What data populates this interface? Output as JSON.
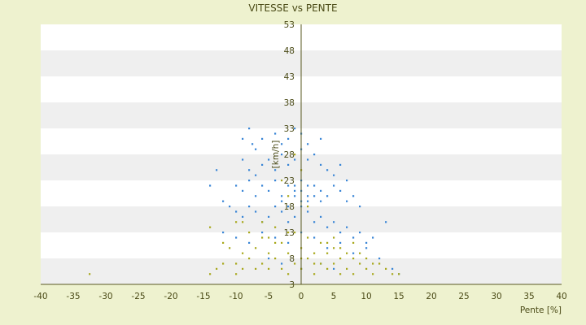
{
  "chart_data": {
    "type": "scatter",
    "title": "VITESSE vs PENTE",
    "xlabel": "Pente [%]",
    "ylabel": "[km/h]",
    "xlim": [
      -40,
      40
    ],
    "ylim": [
      3,
      53
    ],
    "x_ticks": [
      -40,
      -35,
      -30,
      -25,
      -20,
      -15,
      -10,
      -5,
      0,
      5,
      10,
      15,
      20,
      25,
      30,
      35,
      40
    ],
    "y_ticks": [
      3,
      8,
      13,
      18,
      23,
      28,
      33,
      38,
      43,
      48,
      53
    ],
    "grid": "horizontal bands",
    "legend": "none",
    "series": [
      {
        "color": "#3a86d6",
        "values": [
          [
            -8,
            33
          ],
          [
            -7.5,
            30
          ],
          [
            -9,
            31
          ],
          [
            -7,
            29
          ],
          [
            -6,
            31
          ],
          [
            -4,
            32
          ],
          [
            -3,
            30
          ],
          [
            -2,
            31
          ],
          [
            -1,
            33
          ],
          [
            0,
            32
          ],
          [
            1,
            30
          ],
          [
            3,
            31
          ],
          [
            -9,
            27
          ],
          [
            -8,
            25
          ],
          [
            -7,
            24
          ],
          [
            -6,
            26
          ],
          [
            -5,
            27
          ],
          [
            -4,
            25
          ],
          [
            -3,
            28
          ],
          [
            -2,
            26
          ],
          [
            -1,
            27
          ],
          [
            0,
            29
          ],
          [
            1,
            27
          ],
          [
            2,
            28
          ],
          [
            3,
            26
          ],
          [
            4,
            25
          ],
          [
            5,
            24
          ],
          [
            6,
            26
          ],
          [
            7,
            23
          ],
          [
            -10,
            22
          ],
          [
            -9,
            21
          ],
          [
            -8,
            23
          ],
          [
            -7,
            20
          ],
          [
            -6,
            22
          ],
          [
            -5,
            21
          ],
          [
            -4,
            23
          ],
          [
            -3,
            20
          ],
          [
            -2,
            22
          ],
          [
            -1,
            21
          ],
          [
            0,
            23
          ],
          [
            1,
            20
          ],
          [
            2,
            22
          ],
          [
            3,
            21
          ],
          [
            4,
            20
          ],
          [
            5,
            22
          ],
          [
            6,
            21
          ],
          [
            7,
            19
          ],
          [
            8,
            20
          ],
          [
            9,
            18
          ],
          [
            -11,
            18
          ],
          [
            -10,
            17
          ],
          [
            -9,
            16
          ],
          [
            -8,
            18
          ],
          [
            -7,
            17
          ],
          [
            -6,
            15
          ],
          [
            -5,
            16
          ],
          [
            -4,
            18
          ],
          [
            -3,
            17
          ],
          [
            -2,
            15
          ],
          [
            -1,
            16
          ],
          [
            0,
            18
          ],
          [
            1,
            17
          ],
          [
            2,
            15
          ],
          [
            3,
            16
          ],
          [
            4,
            14
          ],
          [
            5,
            15
          ],
          [
            6,
            13
          ],
          [
            7,
            14
          ],
          [
            8,
            12
          ],
          [
            9,
            13
          ],
          [
            10,
            11
          ],
          [
            11,
            12
          ],
          [
            13,
            15
          ],
          [
            -12,
            13
          ],
          [
            -10,
            12
          ],
          [
            -8,
            11
          ],
          [
            -6,
            13
          ],
          [
            -4,
            12
          ],
          [
            -2,
            11
          ],
          [
            0,
            13
          ],
          [
            2,
            12
          ],
          [
            4,
            10
          ],
          [
            6,
            11
          ],
          [
            8,
            9
          ],
          [
            10,
            10
          ],
          [
            12,
            8
          ],
          [
            14,
            6
          ],
          [
            15,
            5
          ],
          [
            -14,
            22
          ],
          [
            -13,
            25
          ],
          [
            -12,
            19
          ],
          [
            -5,
            8
          ],
          [
            -3,
            7
          ],
          [
            0,
            6
          ],
          [
            3,
            7
          ],
          [
            5,
            6
          ],
          [
            -1,
            20
          ],
          [
            0,
            21
          ],
          [
            1,
            19
          ],
          [
            -2,
            18
          ],
          [
            2,
            20
          ],
          [
            -1,
            22
          ],
          [
            1,
            22
          ],
          [
            0,
            19
          ],
          [
            -3,
            19
          ],
          [
            3,
            19
          ]
        ]
      },
      {
        "color": "#a8a81c",
        "values": [
          [
            -32.5,
            5
          ],
          [
            -14,
            5
          ],
          [
            -13,
            6
          ],
          [
            -12,
            7
          ],
          [
            -11,
            10
          ],
          [
            -10,
            5
          ],
          [
            -10,
            7
          ],
          [
            -9,
            9
          ],
          [
            -9,
            6
          ],
          [
            -8,
            13
          ],
          [
            -8,
            8
          ],
          [
            -7,
            10
          ],
          [
            -7,
            6
          ],
          [
            -6,
            12
          ],
          [
            -6,
            7
          ],
          [
            -5,
            9
          ],
          [
            -5,
            6
          ],
          [
            -4,
            14
          ],
          [
            -4,
            8
          ],
          [
            -3,
            11
          ],
          [
            -3,
            6
          ],
          [
            -2,
            9
          ],
          [
            -2,
            5
          ],
          [
            -1,
            13
          ],
          [
            -1,
            7
          ],
          [
            0,
            10
          ],
          [
            0,
            6
          ],
          [
            1,
            12
          ],
          [
            1,
            8
          ],
          [
            2,
            9
          ],
          [
            2,
            5
          ],
          [
            3,
            11
          ],
          [
            3,
            7
          ],
          [
            4,
            9
          ],
          [
            4,
            6
          ],
          [
            5,
            10
          ],
          [
            5,
            7
          ],
          [
            6,
            8
          ],
          [
            6,
            5
          ],
          [
            7,
            9
          ],
          [
            7,
            6
          ],
          [
            8,
            8
          ],
          [
            8,
            5
          ],
          [
            9,
            7
          ],
          [
            10,
            6
          ],
          [
            11,
            5
          ],
          [
            12,
            7
          ],
          [
            13,
            6
          ],
          [
            14,
            5
          ],
          [
            15,
            5
          ],
          [
            -14,
            14
          ],
          [
            -3,
            23
          ],
          [
            -1,
            28
          ],
          [
            0,
            25
          ],
          [
            -2,
            20
          ],
          [
            1,
            18
          ],
          [
            -10,
            15
          ],
          [
            -9,
            15
          ],
          [
            -12,
            11
          ],
          [
            -6,
            15
          ],
          [
            5,
            12
          ],
          [
            8,
            11
          ],
          [
            9,
            9
          ],
          [
            10,
            8
          ],
          [
            11,
            7
          ],
          [
            -5,
            12
          ],
          [
            -4,
            11
          ],
          [
            -2,
            13
          ],
          [
            0,
            8
          ],
          [
            2,
            7
          ],
          [
            4,
            11
          ],
          [
            6,
            10
          ]
        ]
      }
    ]
  }
}
